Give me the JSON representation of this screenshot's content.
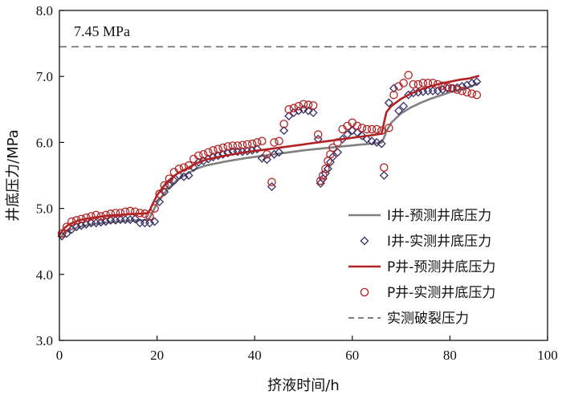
{
  "chart_data": {
    "type": "line",
    "xlabel": "挤液时间/h",
    "ylabel": "井底压力/MPa",
    "xlim": [
      0,
      100
    ],
    "ylim": [
      3.0,
      8.0
    ],
    "x_ticks": [
      0,
      20,
      40,
      60,
      80,
      100
    ],
    "y_ticks": [
      3.0,
      4.0,
      5.0,
      6.0,
      7.0,
      8.0
    ],
    "x_tick_labels": [
      "0",
      "20",
      "40",
      "60",
      "80",
      "100"
    ],
    "y_tick_labels": [
      "3.0",
      "4.0",
      "5.0",
      "6.0",
      "7.0",
      "8.0"
    ],
    "grid": false,
    "legend_position": "bottom-right",
    "reference_line": {
      "y": 7.45,
      "label": "7.45 MPa"
    },
    "series": [
      {
        "name": "I井-预测井底压力",
        "kind": "line",
        "color": "#808080",
        "x": [
          0,
          1,
          2,
          4,
          6,
          8,
          10,
          12,
          14,
          16,
          17,
          18,
          18.5,
          19,
          20,
          22,
          24,
          26,
          28,
          30,
          34,
          38,
          42,
          46,
          50,
          54,
          58,
          62,
          64,
          65,
          66,
          66.5,
          67,
          68,
          70,
          72,
          74,
          76,
          78,
          80,
          82,
          84,
          85,
          86
        ],
        "y": [
          4.55,
          4.62,
          4.67,
          4.72,
          4.75,
          4.77,
          4.79,
          4.8,
          4.81,
          4.82,
          4.82,
          4.83,
          4.86,
          4.93,
          5.08,
          5.28,
          5.42,
          5.52,
          5.6,
          5.65,
          5.71,
          5.76,
          5.8,
          5.84,
          5.88,
          5.91,
          5.94,
          5.97,
          5.98,
          5.99,
          6.0,
          6.07,
          6.17,
          6.3,
          6.44,
          6.53,
          6.6,
          6.66,
          6.71,
          6.76,
          6.8,
          6.84,
          6.87,
          6.9
        ]
      },
      {
        "name": "I井-实测井底压力",
        "kind": "scatter",
        "marker": "diamond",
        "color": "#3a2d66",
        "x": [
          0.5,
          1.5,
          2.5,
          3.5,
          4.5,
          5.5,
          6.5,
          7.5,
          8.5,
          9.5,
          10.5,
          11.5,
          12.5,
          13.5,
          14.5,
          15.5,
          16.5,
          17.5,
          18.5,
          19.5,
          20.5,
          21.5,
          22.5,
          23.5,
          24.5,
          25.5,
          26.5,
          27.5,
          28.5,
          29.5,
          30.5,
          31.5,
          32.5,
          33.5,
          34.5,
          35.5,
          36.5,
          37.5,
          38.5,
          39.5,
          40.5,
          41.5,
          42.5,
          43.5,
          44,
          45,
          46,
          47,
          48,
          49,
          50,
          51,
          52,
          53,
          53.5,
          54,
          54.5,
          55,
          55.5,
          56,
          57,
          58,
          59,
          60,
          61,
          62,
          63,
          64,
          65,
          66,
          66.5,
          67.5,
          68.5,
          69.5,
          70.5,
          71.5,
          72.5,
          73.5,
          74.5,
          75.5,
          76.5,
          77.5,
          78.5,
          79.5,
          80.5,
          81.5,
          82.5,
          83.5,
          84.5,
          85.5
        ],
        "y": [
          4.58,
          4.62,
          4.68,
          4.72,
          4.74,
          4.76,
          4.78,
          4.78,
          4.79,
          4.8,
          4.82,
          4.82,
          4.83,
          4.83,
          4.83,
          4.84,
          4.78,
          4.78,
          4.78,
          4.8,
          5.1,
          5.25,
          5.35,
          5.42,
          5.5,
          5.48,
          5.5,
          5.62,
          5.7,
          5.72,
          5.75,
          5.78,
          5.8,
          5.82,
          5.84,
          5.86,
          5.86,
          5.86,
          5.87,
          5.88,
          5.9,
          5.76,
          5.74,
          5.33,
          5.82,
          5.85,
          6.18,
          6.4,
          6.45,
          6.48,
          6.5,
          6.48,
          6.45,
          6.05,
          5.38,
          5.45,
          5.53,
          5.6,
          5.7,
          5.78,
          5.85,
          6.05,
          6.12,
          6.18,
          6.15,
          6.1,
          6.05,
          6.02,
          6.0,
          5.98,
          5.5,
          6.6,
          6.82,
          6.48,
          6.55,
          6.72,
          6.75,
          6.76,
          6.77,
          6.78,
          6.78,
          6.78,
          6.8,
          6.82,
          6.82,
          6.83,
          6.85,
          6.87,
          6.9,
          6.92
        ]
      },
      {
        "name": "P井-预测井底压力",
        "kind": "line",
        "color": "#b22222",
        "x": [
          0,
          1,
          2,
          4,
          6,
          8,
          10,
          12,
          14,
          16,
          17,
          18,
          18.5,
          19,
          20,
          22,
          24,
          26,
          28,
          30,
          34,
          38,
          42,
          46,
          50,
          54,
          58,
          62,
          64,
          65,
          66,
          66.5,
          67,
          68,
          70,
          72,
          74,
          76,
          78,
          80,
          82,
          84,
          85,
          86
        ],
        "y": [
          4.6,
          4.7,
          4.76,
          4.82,
          4.85,
          4.87,
          4.89,
          4.9,
          4.91,
          4.92,
          4.92,
          4.93,
          4.97,
          5.05,
          5.2,
          5.4,
          5.52,
          5.6,
          5.68,
          5.74,
          5.8,
          5.85,
          5.89,
          5.93,
          5.97,
          6.01,
          6.05,
          6.09,
          6.11,
          6.12,
          6.13,
          6.3,
          6.46,
          6.55,
          6.66,
          6.74,
          6.8,
          6.85,
          6.89,
          6.92,
          6.95,
          6.97,
          6.99,
          7.01
        ]
      },
      {
        "name": "P井-实测井底压力",
        "kind": "scatter",
        "marker": "circle",
        "color": "#b22222",
        "x": [
          0.5,
          1.5,
          2.5,
          3.5,
          4.5,
          5.5,
          6.5,
          7.5,
          8.5,
          9.5,
          10.5,
          11.5,
          12.5,
          13.5,
          14.5,
          15.5,
          16.5,
          17.5,
          18.5,
          19.5,
          20.5,
          21.5,
          22.5,
          23.5,
          24.5,
          25.5,
          26.5,
          27.5,
          28.5,
          29.5,
          30.5,
          31.5,
          32.5,
          33.5,
          34.5,
          35.5,
          36.5,
          37.5,
          38.5,
          39.5,
          40.5,
          41.5,
          42.5,
          43.5,
          44,
          45,
          46,
          47,
          48,
          49,
          50,
          51,
          52,
          53,
          53.5,
          54,
          54.5,
          55,
          55.5,
          56,
          57,
          58,
          59,
          60,
          61,
          62,
          63,
          64,
          65,
          66,
          66.5,
          67.5,
          68.5,
          69.5,
          70.5,
          71.5,
          72.5,
          73.5,
          74.5,
          75.5,
          76.5,
          77.5,
          78.5,
          79.5,
          80.5,
          81.5,
          82.5,
          83.5,
          84.5,
          85.5
        ],
        "y": [
          4.62,
          4.72,
          4.8,
          4.82,
          4.84,
          4.86,
          4.88,
          4.9,
          4.88,
          4.9,
          4.92,
          4.93,
          4.93,
          4.95,
          4.96,
          4.95,
          4.93,
          4.92,
          4.88,
          5.0,
          5.22,
          5.35,
          5.45,
          5.55,
          5.6,
          5.62,
          5.65,
          5.75,
          5.8,
          5.82,
          5.85,
          5.88,
          5.9,
          5.92,
          5.94,
          5.95,
          5.95,
          5.96,
          5.97,
          5.98,
          6.0,
          6.02,
          5.82,
          5.4,
          6.0,
          6.02,
          6.28,
          6.5,
          6.52,
          6.55,
          6.58,
          6.57,
          6.56,
          6.12,
          5.42,
          5.5,
          5.6,
          5.72,
          5.82,
          5.92,
          6.0,
          6.2,
          6.25,
          6.3,
          6.25,
          6.22,
          6.2,
          6.2,
          6.2,
          6.18,
          5.62,
          6.22,
          6.72,
          6.85,
          6.9,
          7.02,
          6.88,
          6.88,
          6.9,
          6.9,
          6.9,
          6.88,
          6.86,
          6.84,
          6.82,
          6.8,
          6.78,
          6.76,
          6.74,
          6.72
        ]
      }
    ]
  },
  "legend": [
    {
      "label": "I井-预测井底压力",
      "symbol": "line",
      "color": "#808080"
    },
    {
      "label": "I井-实测井底压力",
      "symbol": "diamond",
      "color": "#3a2d66"
    },
    {
      "label": "P井-预测井底压力",
      "symbol": "line",
      "color": "#b22222"
    },
    {
      "label": "P井-实测井底压力",
      "symbol": "circle",
      "color": "#b22222"
    },
    {
      "label": "实测破裂压力",
      "symbol": "dashed",
      "color": "#333333"
    }
  ]
}
